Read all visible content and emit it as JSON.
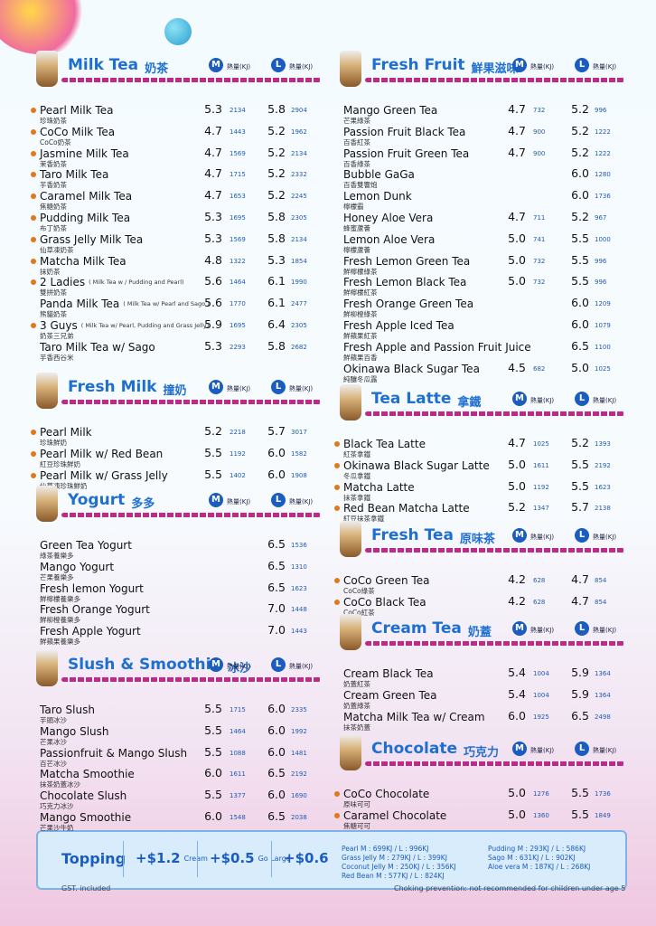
{
  "sections": [
    {
      "title": "Milk Tea",
      "title_zh": "奶茶",
      "items": [
        {
          "name": "Pearl Milk Tea",
          "zh": "珍珠奶茶",
          "dot": true,
          "m_price": "5.3",
          "m_kj": 2134,
          "l_price": "5.8",
          "l_kj": 2904
        },
        {
          "name": "CoCo Milk Tea",
          "zh": "CoCo奶茶",
          "dot": true,
          "m_price": "4.7",
          "m_kj": 1443,
          "l_price": "5.2",
          "l_kj": 1962
        },
        {
          "name": "Jasmine Milk Tea",
          "zh": "茉香奶茶",
          "dot": true,
          "m_price": "4.7",
          "m_kj": 1569,
          "l_price": "5.2",
          "l_kj": 2134
        },
        {
          "name": "Taro Milk Tea",
          "zh": "芋香奶茶",
          "dot": true,
          "m_price": "4.7",
          "m_kj": 1715,
          "l_price": "5.2",
          "l_kj": 2332
        },
        {
          "name": "Caramel Milk Tea",
          "zh": "焦糖奶茶",
          "dot": true,
          "m_price": "4.7",
          "m_kj": 1653,
          "l_price": "5.2",
          "l_kj": 2245
        },
        {
          "name": "Pudding Milk Tea",
          "zh": "布丁奶茶",
          "dot": true,
          "m_price": "5.3",
          "m_kj": 1695,
          "l_price": "5.8",
          "l_kj": 2305
        },
        {
          "name": "Grass Jelly Milk Tea",
          "zh": "仙草凍奶茶",
          "dot": true,
          "m_price": "5.3",
          "m_kj": 1569,
          "l_price": "5.8",
          "l_kj": 2134
        },
        {
          "name": "Matcha Milk Tea",
          "zh": "抹奶茶",
          "dot": true,
          "m_price": "4.8",
          "m_kj": 1322,
          "l_price": "5.3",
          "l_kj": 1854
        },
        {
          "name": "2 Ladies",
          "note": "( Milk Tea w / Pudding and Pearl)",
          "zh": "雙拼奶茶",
          "dot": true,
          "m_price": "5.6",
          "m_kj": 1464,
          "l_price": "6.1",
          "l_kj": 1990
        },
        {
          "name": "Panda Milk Tea",
          "note": "( Milk Tea w/ Pearl and Sago )",
          "zh": "熊貓奶茶",
          "dot": false,
          "m_price": "5.6",
          "m_kj": 1770,
          "l_price": "6.1",
          "l_kj": 2477
        },
        {
          "name": "3 Guys",
          "note": "( Milk Tea w/ Pearl, Pudding and Grass Jelly)",
          "zh": "奶茶三兄弟",
          "dot": true,
          "m_price": "5.9",
          "m_kj": 1695,
          "l_price": "6.4",
          "l_kj": 2305
        },
        {
          "name": "Taro Milk Tea w/ Sago",
          "zh": "芋香西谷米",
          "dot": false,
          "m_price": "5.3",
          "m_kj": 2293,
          "l_price": "5.8",
          "l_kj": 2682
        }
      ]
    },
    {
      "title": "Fresh Milk",
      "title_zh": "撞奶",
      "items": [
        {
          "name": "Pearl Milk",
          "zh": "珍珠鮮奶",
          "dot": true,
          "m_price": "5.2",
          "m_kj": 2218,
          "l_price": "5.7",
          "l_kj": 3017
        },
        {
          "name": "Pearl Milk w/ Red Bean",
          "zh": "紅豆珍珠鮮奶",
          "dot": true,
          "m_price": "5.5",
          "m_kj": 1192,
          "l_price": "6.0",
          "l_kj": 1582
        },
        {
          "name": "Pearl Milk w/ Grass Jelly",
          "zh": "仙草凍珍珠鮮奶",
          "dot": true,
          "m_price": "5.5",
          "m_kj": 1402,
          "l_price": "6.0",
          "l_kj": 1908
        }
      ]
    },
    {
      "title": "Yogurt",
      "title_zh": "多多",
      "items": [
        {
          "name": "Green Tea Yogurt",
          "zh": "綠茶養樂多",
          "dot": false,
          "l_price": "6.5",
          "l_kj": 1536
        },
        {
          "name": "Mango Yogurt",
          "zh": "芒果養樂多",
          "dot": false,
          "l_price": "6.5",
          "l_kj": 1310
        },
        {
          "name": "Fresh lemon  Yogurt",
          "zh": "鮮檸檬養樂多",
          "dot": false,
          "l_price": "6.5",
          "l_kj": 1623
        },
        {
          "name": "Fresh Orange Yogurt",
          "zh": "鮮柳橙養樂多",
          "dot": false,
          "l_price": "7.0",
          "l_kj": 1448
        },
        {
          "name": "Fresh Apple Yogurt",
          "zh": "鮮蘋果養樂多",
          "dot": false,
          "l_price": "7.0",
          "l_kj": 1443
        }
      ]
    },
    {
      "title": "Slush & Smoothie",
      "title_zh": "冰沙",
      "items": [
        {
          "name": "Taro Slush",
          "zh": "芋頭冰沙",
          "dot": false,
          "m_price": "5.5",
          "m_kj": 1715,
          "l_price": "6.0",
          "l_kj": 2335
        },
        {
          "name": "Mango Slush",
          "zh": "芒果冰沙",
          "dot": false,
          "m_price": "5.5",
          "m_kj": 1464,
          "l_price": "6.0",
          "l_kj": 1992
        },
        {
          "name": "Passionfruit & Mango Slush",
          "zh": "百芒冰沙",
          "dot": false,
          "m_price": "5.5",
          "m_kj": 1088,
          "l_price": "6.0",
          "l_kj": 1481
        },
        {
          "name": "Matcha Smoothie",
          "zh": "抹茶奶蓋冰沙",
          "dot": false,
          "m_price": "6.0",
          "m_kj": 1611,
          "l_price": "6.5",
          "l_kj": 2192
        },
        {
          "name": "Chocolate Slush",
          "zh": "巧克力冰沙",
          "dot": false,
          "m_price": "5.5",
          "m_kj": 1377,
          "l_price": "6.0",
          "l_kj": 1690
        },
        {
          "name": "Mango Smoothie",
          "zh": "芒果沙牛奶",
          "dot": false,
          "m_price": "6.0",
          "m_kj": 1548,
          "l_price": "6.5",
          "l_kj": 2038
        }
      ]
    },
    {
      "title": "Fresh Fruit",
      "title_zh": "鮮果滋味",
      "items": [
        {
          "name": "Mango Green Tea",
          "zh": "芒果綠茶",
          "dot": false,
          "m_price": "4.7",
          "m_kj": 732,
          "l_price": "5.2",
          "l_kj": 996
        },
        {
          "name": "Passion Fruit Black Tea",
          "zh": "百香紅茶",
          "dot": false,
          "m_price": "4.7",
          "m_kj": 900,
          "l_price": "5.2",
          "l_kj": 1222
        },
        {
          "name": "Passion Fruit Green Tea",
          "zh": "百香綠茶",
          "dot": false,
          "m_price": "4.7",
          "m_kj": 900,
          "l_price": "5.2",
          "l_kj": 1222
        },
        {
          "name": "Bubble GaGa",
          "zh": "百香雙響炮",
          "dot": false,
          "l_price": "6.0",
          "l_kj": 1280
        },
        {
          "name": "Lemon Dunk",
          "zh": "檸檬霸",
          "dot": false,
          "l_price": "6.0",
          "l_kj": 1736
        },
        {
          "name": "Honey Aloe Vera",
          "zh": "蜂蜜蘆薈",
          "dot": false,
          "m_price": "4.7",
          "m_kj": 711,
          "l_price": "5.2",
          "l_kj": 967
        },
        {
          "name": "Lemon Aloe Vera",
          "zh": "檸檬蘆薈",
          "dot": false,
          "m_price": "5.0",
          "m_kj": 741,
          "l_price": "5.5",
          "l_kj": 1000
        },
        {
          "name": "Fresh Lemon Green Tea",
          "zh": "鮮檸檬綠茶",
          "dot": false,
          "m_price": "5.0",
          "m_kj": 732,
          "l_price": "5.5",
          "l_kj": 996
        },
        {
          "name": "Fresh Lemon Black Tea",
          "zh": "鮮檸檬紅茶",
          "dot": false,
          "m_price": "5.0",
          "m_kj": 732,
          "l_price": "5.5",
          "l_kj": 996
        },
        {
          "name": "Fresh Orange Green Tea",
          "zh": "鮮柳橙綠茶",
          "dot": false,
          "l_price": "6.0",
          "l_kj": 1209
        },
        {
          "name": "Fresh Apple Iced Tea",
          "zh": "鮮蘋果紅茶",
          "dot": false,
          "l_price": "6.0",
          "l_kj": 1079
        },
        {
          "name": "Fresh Apple and Passion Fruit Juice",
          "zh": "鮮蘋果百香",
          "dot": false,
          "l_price": "6.5",
          "l_kj": 1100
        },
        {
          "name": "Okinawa Black Sugar Tea",
          "zh": "純釀冬瓜露",
          "dot": false,
          "m_price": "4.5",
          "m_kj": 682,
          "l_price": "5.0",
          "l_kj": 1025
        }
      ]
    },
    {
      "title": "Tea Latte",
      "title_zh": "拿鐵",
      "items": [
        {
          "name": "Black Tea Latte",
          "zh": "紅茶拿鐵",
          "dot": true,
          "m_price": "4.7",
          "m_kj": 1025,
          "l_price": "5.2",
          "l_kj": 1393
        },
        {
          "name": "Okinawa Black Sugar Latte",
          "zh": "冬瓜拿鐵",
          "dot": true,
          "m_price": "5.0",
          "m_kj": 1611,
          "l_price": "5.5",
          "l_kj": 2192
        },
        {
          "name": "Matcha Latte",
          "zh": "抹茶拿鐵",
          "dot": true,
          "m_price": "5.0",
          "m_kj": 1192,
          "l_price": "5.5",
          "l_kj": 1623
        },
        {
          "name": "Red Bean Matcha Latte",
          "zh": "紅豆抹茶拿鐵",
          "dot": true,
          "m_price": "5.2",
          "m_kj": 1347,
          "l_price": "5.7",
          "l_kj": 2138
        }
      ]
    },
    {
      "title": "Fresh Tea",
      "title_zh": "原味茶",
      "items": [
        {
          "name": "CoCo Green Tea",
          "zh": "CoCo綠茶",
          "dot": true,
          "m_price": "4.2",
          "m_kj": 628,
          "l_price": "4.7",
          "l_kj": 854
        },
        {
          "name": "CoCo Black Tea",
          "zh": "CoCo紅茶",
          "dot": true,
          "m_price": "4.2",
          "m_kj": 628,
          "l_price": "4.7",
          "l_kj": 854
        }
      ]
    },
    {
      "title": "Cream Tea",
      "title_zh": "奶蓋",
      "items": [
        {
          "name": "Cream Black Tea",
          "zh": "奶蓋紅茶",
          "dot": false,
          "m_price": "5.4",
          "m_kj": 1004,
          "l_price": "5.9",
          "l_kj": 1364
        },
        {
          "name": "Cream Green Tea",
          "zh": "奶蓋綠茶",
          "dot": false,
          "m_price": "5.4",
          "m_kj": 1004,
          "l_price": "5.9",
          "l_kj": 1364
        },
        {
          "name": "Matcha Milk Tea w/ Cream",
          "zh": "抹茶奶蓋",
          "dot": false,
          "m_price": "6.0",
          "m_kj": 1925,
          "l_price": "6.5",
          "l_kj": 2498
        }
      ]
    },
    {
      "title": "Chocolate",
      "title_zh": "巧克力",
      "items": [
        {
          "name": "CoCo Chocolate",
          "zh": "原味可可",
          "dot": true,
          "m_price": "5.0",
          "m_kj": 1276,
          "l_price": "5.5",
          "l_kj": 1736
        },
        {
          "name": "Caramel Chocolate",
          "zh": "焦糖可可",
          "dot": true,
          "m_price": "5.0",
          "m_kj": 1360,
          "l_price": "5.5",
          "l_kj": 1849
        }
      ]
    }
  ],
  "size_labels": {
    "m": "M",
    "l": "L",
    "kj": "熱量(KJ)"
  },
  "topping": {
    "label": "Topping",
    "prices": [
      {
        "price": "+$1.2",
        "note": "Cream"
      },
      {
        "price": "+$0.5",
        "note": "Go Large"
      },
      {
        "price": "+$0.6"
      }
    ],
    "items": [
      "Pearl  M : 699KJ / L : 996KJ",
      "Grass Jelly  M : 279KJ / L : 399KJ",
      "Coconut Jelly  M : 250KJ / L : 356KJ",
      "Red Bean  M : 577KJ / L : 824KJ",
      "Pudding  M : 293KJ / L : 586KJ",
      "Sago  M : 631KJ / L : 902KJ",
      "Aloe vera  M : 187KJ / L : 268KJ"
    ]
  },
  "footer": {
    "left": "GST. included",
    "right": "Choking prevention: not recommended for children under age 5"
  }
}
